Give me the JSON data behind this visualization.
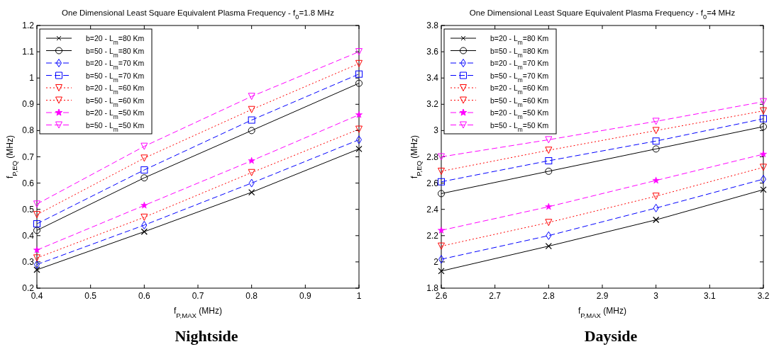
{
  "chart_data": [
    {
      "type": "line",
      "title": "One Dimensional Least Square Equivalent Plasma Frequency - f$_{0}$=1.8 MHz",
      "xlabel": "f$_{P,MAX}$ (MHz)",
      "ylabel": "f$_{P,EQ}$ (MHz)",
      "annotations": [
        "Nightside"
      ],
      "x": [
        0.4,
        0.6,
        0.8,
        1.0
      ],
      "xlim": [
        0.4,
        1
      ],
      "xticks": [
        0.4,
        0.5,
        0.6,
        0.7,
        0.8,
        0.9,
        1
      ],
      "ylim": [
        0.2,
        1.2
      ],
      "yticks": [
        0.2,
        0.3,
        0.4,
        0.5,
        0.6,
        0.7,
        0.8,
        0.9,
        1,
        1.1,
        1.2
      ],
      "grid": false,
      "legend": "top left",
      "series": [
        {
          "name": "b=20 - L$_{m}$=80 Km",
          "color": "#000000",
          "marker": "cross",
          "line_style": "solid",
          "values": [
            0.27,
            0.415,
            0.565,
            0.73
          ]
        },
        {
          "name": "b=50 - L$_{m}$=80 Km",
          "color": "#000000",
          "marker": "circle",
          "line_style": "solid",
          "values": [
            0.42,
            0.62,
            0.8,
            0.98
          ]
        },
        {
          "name": "b=20 - L$_{m}$=70 Km",
          "color": "#0000ff",
          "marker": "diamond",
          "line_style": "dashed",
          "values": [
            0.29,
            0.44,
            0.6,
            0.765
          ]
        },
        {
          "name": "b=50 - L$_{m}$=70 Km",
          "color": "#0000ff",
          "marker": "square",
          "line_style": "dashed",
          "values": [
            0.445,
            0.65,
            0.84,
            1.015
          ]
        },
        {
          "name": "b=20 - L$_{m}$=60 Km",
          "color": "#ff0000",
          "marker": "triangle",
          "line_style": "dotted",
          "values": [
            0.315,
            0.47,
            0.64,
            0.805
          ]
        },
        {
          "name": "b=50 - L$_{m}$=60 Km",
          "color": "#ff0000",
          "marker": "triangle",
          "line_style": "dotted",
          "values": [
            0.48,
            0.695,
            0.88,
            1.055
          ]
        },
        {
          "name": "b=20 - L$_{m}$=50 Km",
          "color": "#ff00ff",
          "marker": "star",
          "line_style": "dashed",
          "values": [
            0.345,
            0.515,
            0.685,
            0.86
          ]
        },
        {
          "name": "b=50 - L$_{m}$=50 Km",
          "color": "#ff00ff",
          "marker": "triangle",
          "line_style": "dashed",
          "values": [
            0.52,
            0.74,
            0.93,
            1.1
          ]
        }
      ]
    },
    {
      "type": "line",
      "title": "One Dimensional Least Square Equivalent Plasma Frequency - f$_{0}$=4 MHz",
      "xlabel": "f$_{P,MAX}$ (MHz)",
      "ylabel": "f$_{P,EQ}$ (MHz)",
      "annotations": [
        "Dayside"
      ],
      "x": [
        2.6,
        2.8,
        3.0,
        3.2
      ],
      "xlim": [
        2.6,
        3.2
      ],
      "xticks": [
        2.6,
        2.7,
        2.8,
        2.9,
        3,
        3.1,
        3.2
      ],
      "ylim": [
        1.8,
        3.8
      ],
      "yticks": [
        1.8,
        2,
        2.2,
        2.4,
        2.6,
        2.8,
        3,
        3.2,
        3.4,
        3.6,
        3.8
      ],
      "grid": false,
      "legend": "top left",
      "series": [
        {
          "name": "b=20 - L$_{m}$=80 Km",
          "color": "#000000",
          "marker": "cross",
          "line_style": "solid",
          "values": [
            1.93,
            2.12,
            2.32,
            2.55
          ]
        },
        {
          "name": "b=50 - L$_{m}$=80 Km",
          "color": "#000000",
          "marker": "circle",
          "line_style": "solid",
          "values": [
            2.52,
            2.69,
            2.86,
            3.03
          ]
        },
        {
          "name": "b=20 - L$_{m}$=70 Km",
          "color": "#0000ff",
          "marker": "diamond",
          "line_style": "dashed",
          "values": [
            2.02,
            2.2,
            2.41,
            2.63
          ]
        },
        {
          "name": "b=50 - L$_{m}$=70 Km",
          "color": "#0000ff",
          "marker": "square",
          "line_style": "dashed",
          "values": [
            2.61,
            2.77,
            2.92,
            3.09
          ]
        },
        {
          "name": "b=20 - L$_{m}$=60 Km",
          "color": "#ff0000",
          "marker": "triangle",
          "line_style": "dotted",
          "values": [
            2.12,
            2.3,
            2.5,
            2.72
          ]
        },
        {
          "name": "b=50 - L$_{m}$=60 Km",
          "color": "#ff0000",
          "marker": "triangle",
          "line_style": "dotted",
          "values": [
            2.69,
            2.85,
            3.0,
            3.15
          ]
        },
        {
          "name": "b=20 - L$_{m}$=50 Km",
          "color": "#ff00ff",
          "marker": "star",
          "line_style": "dashed",
          "values": [
            2.24,
            2.42,
            2.62,
            2.82
          ]
        },
        {
          "name": "b=50 - L$_{m}$=50 Km",
          "color": "#ff00ff",
          "marker": "triangle",
          "line_style": "dashed",
          "values": [
            2.8,
            2.93,
            3.07,
            3.22
          ]
        }
      ]
    }
  ]
}
